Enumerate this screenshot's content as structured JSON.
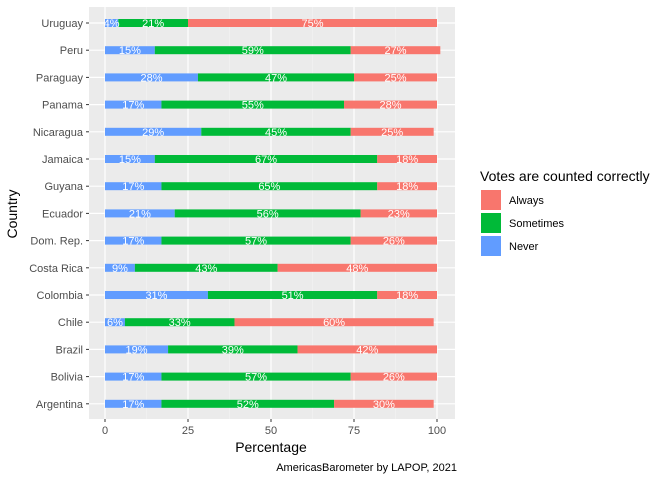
{
  "chart_data": {
    "type": "bar",
    "orientation": "horizontal",
    "stacked": true,
    "xlabel": "Percentage",
    "ylabel": "Country",
    "caption": "AmericasBarometer by LAPOP, 2021",
    "xlim": [
      0,
      100
    ],
    "x_ticks": [
      0,
      25,
      50,
      75,
      100
    ],
    "grid": true,
    "legend": {
      "title": "Votes are counted correctly",
      "placement": "right",
      "entries": [
        "Always",
        "Sometimes",
        "Never"
      ]
    },
    "categories": [
      "Uruguay",
      "Peru",
      "Paraguay",
      "Panama",
      "Nicaragua",
      "Jamaica",
      "Guyana",
      "Ecuador",
      "Dom. Rep.",
      "Costa Rica",
      "Colombia",
      "Chile",
      "Brazil",
      "Bolivia",
      "Argentina"
    ],
    "series": [
      {
        "name": "Never",
        "color": "#619CFF",
        "values": [
          4,
          15,
          28,
          17,
          29,
          15,
          17,
          21,
          17,
          9,
          31,
          6,
          19,
          17,
          17
        ],
        "labels": [
          "4%",
          "15%",
          "28%",
          "17%",
          "29%",
          "15%",
          "17%",
          "21%",
          "17%",
          "9%",
          "31%",
          "6%",
          "19%",
          "17%",
          "17%"
        ]
      },
      {
        "name": "Sometimes",
        "color": "#00BA38",
        "values": [
          21,
          59,
          47,
          55,
          45,
          67,
          65,
          56,
          57,
          43,
          51,
          33,
          39,
          57,
          52
        ],
        "labels": [
          "21%",
          "59%",
          "47%",
          "55%",
          "45%",
          "67%",
          "65%",
          "56%",
          "57%",
          "43%",
          "51%",
          "33%",
          "39%",
          "57%",
          "52%"
        ]
      },
      {
        "name": "Always",
        "color": "#F8766D",
        "values": [
          75,
          27,
          25,
          28,
          25,
          18,
          18,
          23,
          26,
          48,
          18,
          60,
          42,
          26,
          30
        ],
        "labels": [
          "75%",
          "27%",
          "25%",
          "28%",
          "25%",
          "18%",
          "18%",
          "23%",
          "26%",
          "48%",
          "18%",
          "60%",
          "42%",
          "26%",
          "30%"
        ]
      }
    ]
  }
}
